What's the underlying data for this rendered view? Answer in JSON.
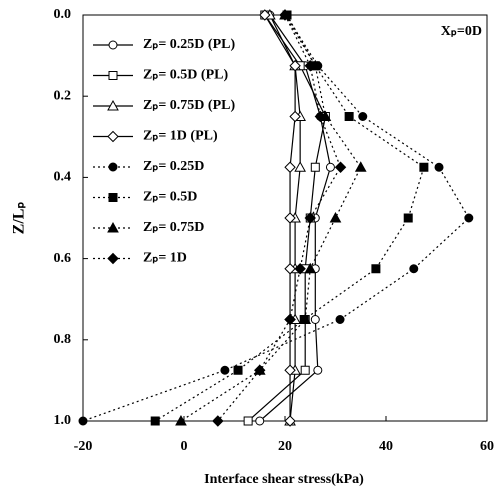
{
  "chart_data": {
    "type": "line",
    "x_label": "Interface shear stress(kPa)",
    "y_label": "Z/Lₚ",
    "annotation": "Xₚ=0D",
    "y": [
      0,
      0.125,
      0.25,
      0.375,
      0.5,
      0.625,
      0.75,
      0.875,
      1
    ],
    "xlim": [
      -20,
      60
    ],
    "xticks": [
      -20,
      0,
      20,
      40,
      60
    ],
    "ylim": [
      0,
      1
    ],
    "yticks": [
      {
        "value": 0,
        "label": "0.0"
      },
      0.2,
      0.4,
      0.6,
      0.8,
      {
        "value": 1,
        "label": "1.0"
      }
    ],
    "y_inverted": true,
    "legend": "upper left",
    "series": [
      {
        "name": "Zₚ= 0.25D (PL)",
        "color": "#000000",
        "marker": "circle",
        "filled": false,
        "dash": "solid",
        "values": [
          17,
          24,
          27,
          29,
          26,
          26,
          26,
          26.5,
          15
        ]
      },
      {
        "name": "Zₚ= 0.5D (PL)",
        "color": "#000000",
        "marker": "square",
        "filled": false,
        "dash": "solid",
        "values": [
          16,
          23,
          28,
          26,
          25,
          24,
          24,
          24,
          12.7
        ]
      },
      {
        "name": "Zₚ= 0.75D (PL)",
        "color": "#000000",
        "marker": "triangle",
        "filled": false,
        "dash": "solid",
        "values": [
          17,
          22,
          23,
          23,
          22,
          22,
          22,
          22,
          21
        ]
      },
      {
        "name": "Zₚ= 1D (PL)",
        "color": "#000000",
        "marker": "diamond",
        "filled": false,
        "dash": "solid",
        "values": [
          16,
          22,
          22,
          21,
          21,
          21,
          21,
          21,
          21
        ]
      },
      {
        "name": "Zₚ= 0.25D",
        "color": "#000000",
        "marker": "circle",
        "filled": true,
        "dash": "dotted",
        "values": [
          20.2,
          26.5,
          35.4,
          50.5,
          56.4,
          45.5,
          30.9,
          8.1,
          -20
        ]
      },
      {
        "name": "Zₚ= 0.5D",
        "color": "#000000",
        "marker": "square",
        "filled": true,
        "dash": "dotted",
        "values": [
          20.4,
          26,
          32.7,
          47.5,
          44.4,
          38,
          23.8,
          10.7,
          -5.7
        ]
      },
      {
        "name": "Zₚ= 0.75D",
        "color": "#000000",
        "marker": "triangle",
        "filled": true,
        "dash": "dotted",
        "values": [
          20,
          26,
          28,
          35,
          30,
          25,
          24,
          15,
          -0.6
        ]
      },
      {
        "name": "Zₚ= 1D",
        "color": "#000000",
        "marker": "diamond",
        "filled": true,
        "dash": "dotted",
        "values": [
          20,
          25,
          27,
          31,
          25,
          23,
          21,
          15,
          6.7
        ]
      }
    ]
  }
}
